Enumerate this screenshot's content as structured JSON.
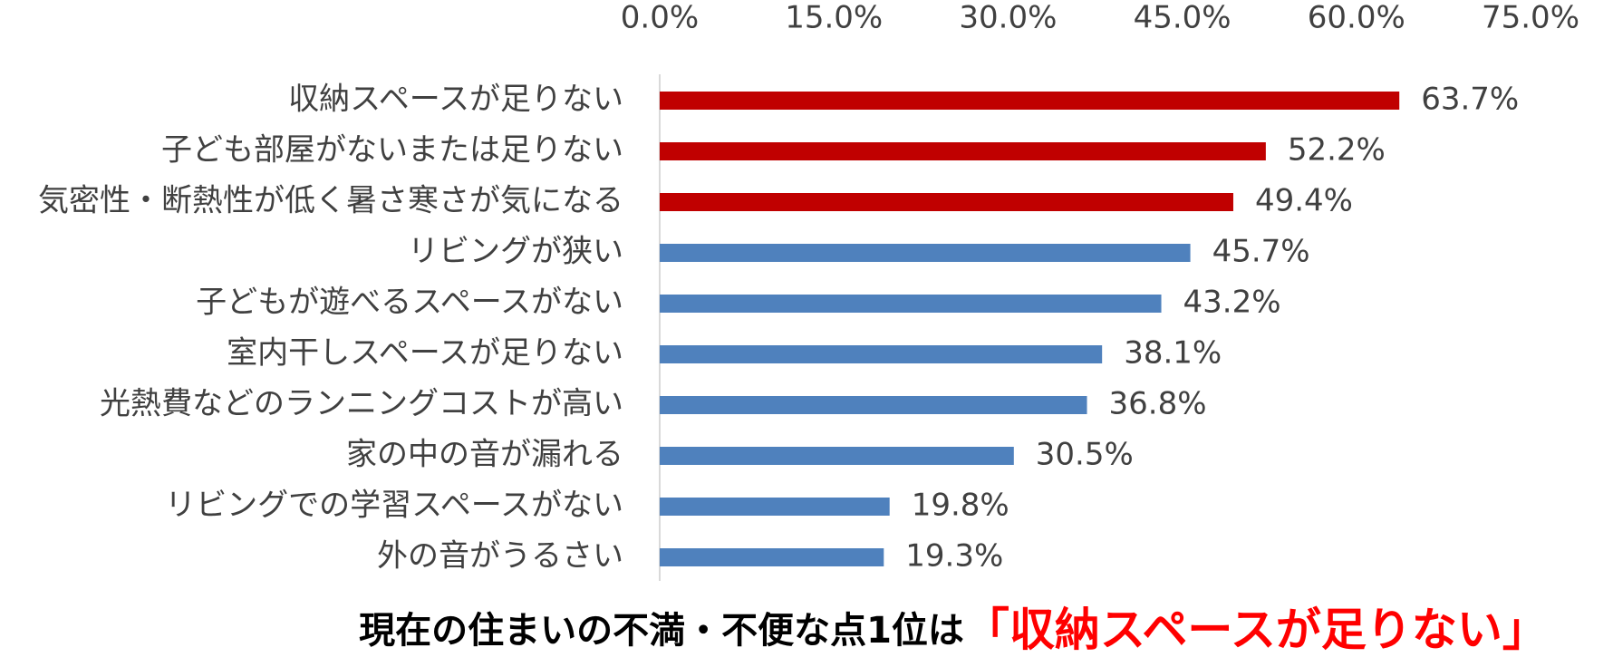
{
  "chart_data": {
    "type": "bar",
    "orientation": "horizontal",
    "categories": [
      "収納スペースが足りない",
      "子ども部屋がないまたは足りない",
      "気密性・断熱性が低く暑さ寒さが気になる",
      "リビングが狭い",
      "子どもが遊べるスペースがない",
      "室内干しスペースが足りない",
      "光熱費などのランニングコストが高い",
      "家の中の音が漏れる",
      "リビングでの学習スペースがない",
      "外の音がうるさい"
    ],
    "values": [
      63.7,
      52.2,
      49.4,
      45.7,
      43.2,
      38.1,
      36.8,
      30.5,
      19.8,
      19.3
    ],
    "value_labels": [
      "63.7%",
      "52.2%",
      "49.4%",
      "45.7%",
      "43.2%",
      "38.1%",
      "36.8%",
      "30.5%",
      "19.8%",
      "19.3%"
    ],
    "colors": [
      "#c00000",
      "#c00000",
      "#c00000",
      "#4f81bd",
      "#4f81bd",
      "#4f81bd",
      "#4f81bd",
      "#4f81bd",
      "#4f81bd",
      "#4f81bd"
    ],
    "xlim": [
      0,
      75
    ],
    "xticks": [
      {
        "value": 0,
        "label": "0.0%"
      },
      {
        "value": 15,
        "label": "15.0%"
      },
      {
        "value": 30,
        "label": "30.0%"
      },
      {
        "value": 45,
        "label": "45.0%"
      },
      {
        "value": 60,
        "label": "60.0%"
      },
      {
        "value": 75,
        "label": "75.0%"
      }
    ],
    "grid": false,
    "caption": "現在の住まいの不満・不便な点1位は",
    "caption_highlight": "「収納スペースが足りない」",
    "caption_highlight_color": "#ff0000"
  }
}
